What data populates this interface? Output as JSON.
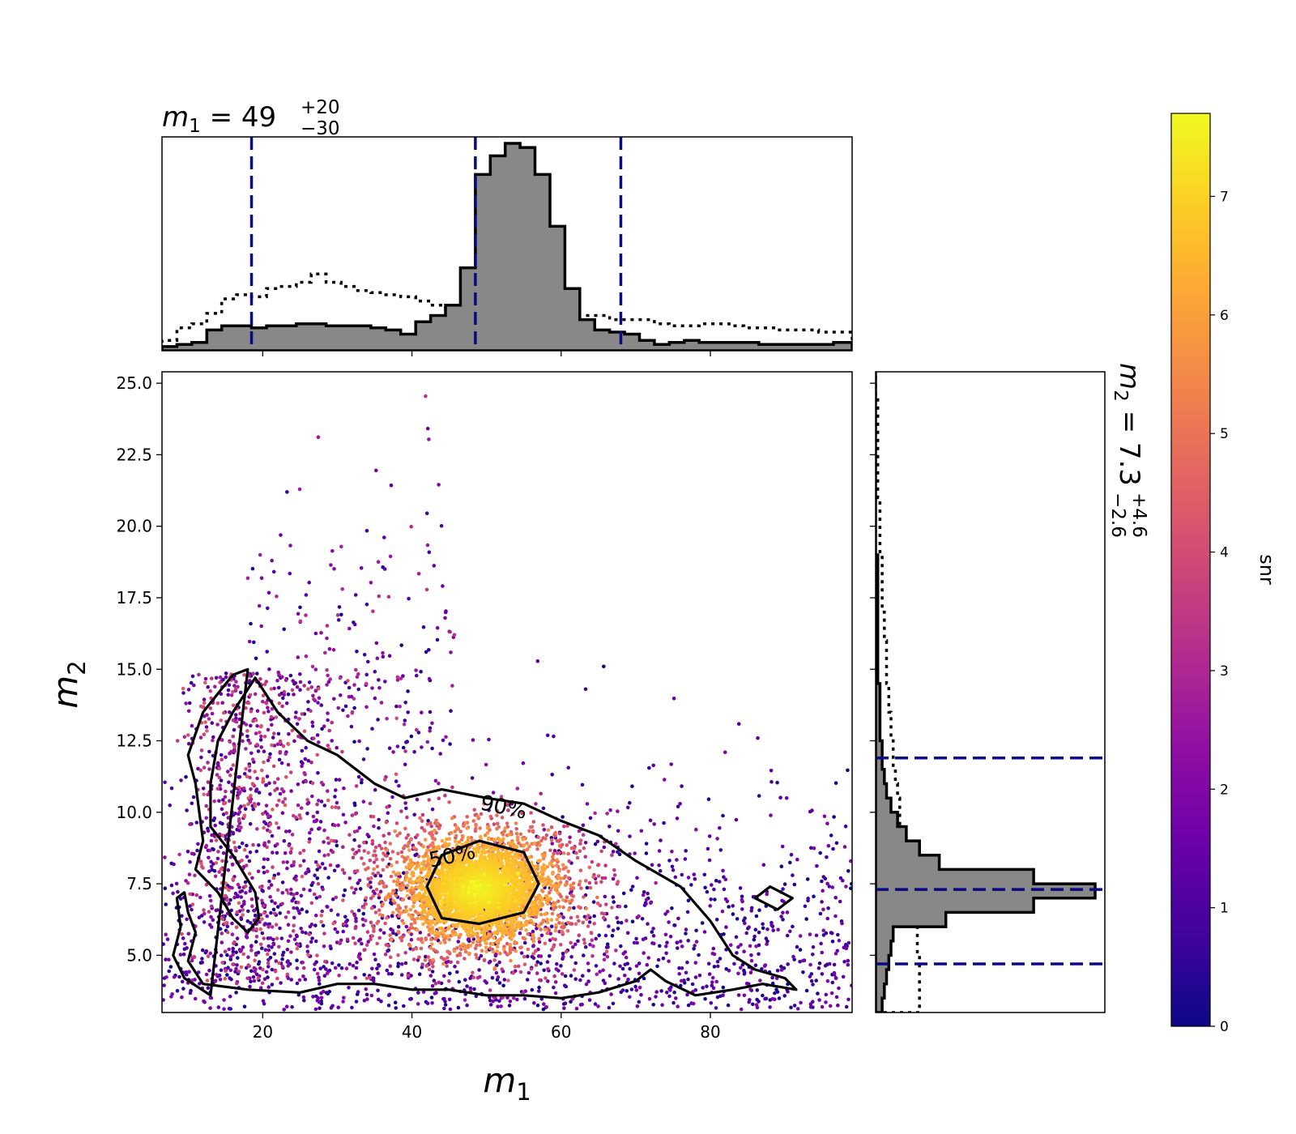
{
  "chart_data": {
    "type": "scatter",
    "title_top": {
      "base": "m",
      "sub": "1",
      "eq": " = 49",
      "sup": "+20",
      "low": "−30"
    },
    "title_right": {
      "base": "m",
      "sub": "2",
      "eq": " = 7.3",
      "sup": "+4.6",
      "low": "−2.6"
    },
    "xlabel": {
      "base": "m",
      "sub": "1"
    },
    "ylabel": {
      "base": "m",
      "sub": "2"
    },
    "colorbar_label": "snr",
    "xlim": [
      6.5,
      99
    ],
    "ylim": [
      3,
      25.4
    ],
    "x_ticks": [
      "20",
      "40",
      "60",
      "80"
    ],
    "y_ticks": [
      "5.0",
      "7.5",
      "10.0",
      "12.5",
      "15.0",
      "17.5",
      "20.0",
      "22.5",
      "25.0"
    ],
    "colorbar": {
      "range": [
        0,
        7.7
      ],
      "ticks": [
        "0",
        "1",
        "2",
        "3",
        "4",
        "5",
        "6",
        "7"
      ],
      "colormap": "plasma"
    },
    "grid": false,
    "m1_credible": {
      "lower": 18.5,
      "median": 48.5,
      "upper": 68
    },
    "m2_credible": {
      "lower": 4.7,
      "median": 7.3,
      "upper": 11.9
    },
    "contour_labels": [
      "90%",
      "50%"
    ],
    "contours": {
      "c90_main": [
        [
          18,
          15
        ],
        [
          16,
          14.8
        ],
        [
          12,
          13.5
        ],
        [
          10,
          12
        ],
        [
          11,
          11
        ],
        [
          12,
          9
        ],
        [
          11,
          8
        ],
        [
          14,
          7.2
        ],
        [
          16,
          6.3
        ],
        [
          18,
          5.8
        ],
        [
          19.5,
          6.3
        ],
        [
          19,
          7.2
        ],
        [
          16,
          8.5
        ],
        [
          13,
          9.5
        ],
        [
          13,
          11
        ],
        [
          14,
          12.5
        ],
        [
          16,
          13.5
        ],
        [
          19,
          14.7
        ],
        [
          22,
          13.5
        ],
        [
          26,
          12.5
        ],
        [
          30,
          12
        ],
        [
          35,
          11
        ],
        [
          39,
          10.5
        ],
        [
          44,
          10.8
        ],
        [
          50,
          10.5
        ],
        [
          55,
          10.3
        ],
        [
          60,
          9.7
        ],
        [
          65,
          9.2
        ],
        [
          70,
          8.3
        ],
        [
          76,
          7.4
        ],
        [
          80,
          6.2
        ],
        [
          83,
          5
        ],
        [
          86,
          4.5
        ],
        [
          90,
          4.2
        ],
        [
          91.5,
          3.8
        ],
        [
          87,
          4
        ],
        [
          83,
          3.8
        ],
        [
          78,
          3.6
        ],
        [
          74,
          4.1
        ],
        [
          72,
          4.5
        ],
        [
          70,
          4.1
        ],
        [
          65,
          3.7
        ],
        [
          60,
          3.5
        ],
        [
          55,
          3.6
        ],
        [
          50,
          3.6
        ],
        [
          45,
          3.8
        ],
        [
          40,
          3.8
        ],
        [
          35,
          4
        ],
        [
          30,
          4
        ],
        [
          25,
          3.7
        ],
        [
          18,
          3.8
        ],
        [
          12,
          4
        ],
        [
          10,
          4.8
        ],
        [
          11,
          5.8
        ],
        [
          10,
          6.5
        ],
        [
          9.5,
          7.2
        ],
        [
          8.5,
          7
        ],
        [
          9,
          6
        ],
        [
          8,
          5
        ],
        [
          9.5,
          4.2
        ],
        [
          13,
          3.6
        ]
      ],
      "c90_island": [
        [
          86,
          7
        ],
        [
          88,
          7.4
        ],
        [
          91,
          7
        ],
        [
          89,
          6.6
        ]
      ],
      "c50": [
        [
          42,
          7.4
        ],
        [
          44,
          8.5
        ],
        [
          49,
          9
        ],
        [
          55,
          8.6
        ],
        [
          57,
          7.5
        ],
        [
          55,
          6.5
        ],
        [
          49,
          6.1
        ],
        [
          44,
          6.3
        ]
      ]
    },
    "hist_m1": {
      "bin_edges": [
        6.5,
        8.5,
        10.5,
        12.5,
        14.5,
        16.5,
        18.5,
        20.5,
        22.5,
        24.5,
        26.5,
        28.5,
        30.5,
        32.5,
        34.5,
        36.5,
        38.5,
        40.5,
        42.5,
        44.5,
        46.5,
        48.5,
        50.5,
        52.5,
        54.5,
        56.5,
        58.5,
        60.5,
        62.5,
        64.5,
        66.5,
        68.5,
        70.5,
        72.5,
        74.5,
        76.5,
        78.5,
        80.5,
        82.5,
        84.5,
        86.5,
        88.5,
        90.5,
        92.5,
        94.5,
        96.5,
        99
      ],
      "posterior": [
        2,
        3,
        4,
        10,
        12,
        12,
        11,
        12,
        12,
        13,
        13,
        12,
        12,
        12,
        11,
        10,
        8,
        14,
        17,
        22,
        40,
        85,
        94,
        100,
        98,
        85,
        60,
        30,
        15,
        10,
        9,
        8,
        5,
        3,
        4,
        5,
        4,
        4,
        4,
        4,
        3,
        3,
        3,
        3,
        3,
        4
      ],
      "prior": [
        5,
        11,
        13,
        18,
        25,
        27,
        26,
        30,
        31,
        33,
        37,
        33,
        31,
        29,
        28,
        27,
        26,
        24,
        22,
        20,
        21,
        20,
        20,
        21,
        20,
        21,
        19,
        18,
        17,
        17,
        15,
        15,
        15,
        13,
        12,
        12,
        13,
        13,
        12,
        11,
        11,
        10,
        10,
        10,
        9,
        9
      ]
    },
    "hist_m2": {
      "bin_edges": [
        3,
        3.5,
        4,
        4.5,
        5,
        5.5,
        6,
        6.5,
        7,
        7.5,
        8,
        8.5,
        9,
        9.5,
        10,
        10.5,
        11,
        11.5,
        12,
        12.5,
        13,
        13.5,
        14,
        14.5,
        15,
        15.5,
        16,
        16.5,
        17,
        17.5,
        18,
        18.5,
        19,
        19.5,
        20,
        20.5,
        21,
        21.5,
        22,
        22.5,
        23,
        23.5,
        24,
        24.5,
        25,
        25.4
      ],
      "posterior": [
        3,
        4,
        5,
        6,
        7,
        8,
        32,
        72,
        100,
        72,
        29,
        20,
        14,
        10,
        7,
        5,
        4,
        3,
        3,
        2,
        2,
        2,
        2,
        1,
        1,
        1,
        1,
        1,
        1,
        1,
        1,
        1,
        0,
        0,
        0,
        0,
        0,
        0,
        0,
        0,
        0,
        0,
        0,
        0,
        0
      ],
      "prior": [
        20,
        20,
        20,
        20,
        19,
        19,
        18,
        17,
        16,
        15,
        14,
        13,
        12,
        11,
        11,
        10,
        9,
        8,
        8,
        7,
        7,
        6,
        6,
        5,
        5,
        5,
        4,
        4,
        3,
        3,
        3,
        3,
        2,
        2,
        2,
        2,
        1,
        1,
        1,
        1,
        1,
        1,
        1,
        0,
        0
      ]
    }
  }
}
